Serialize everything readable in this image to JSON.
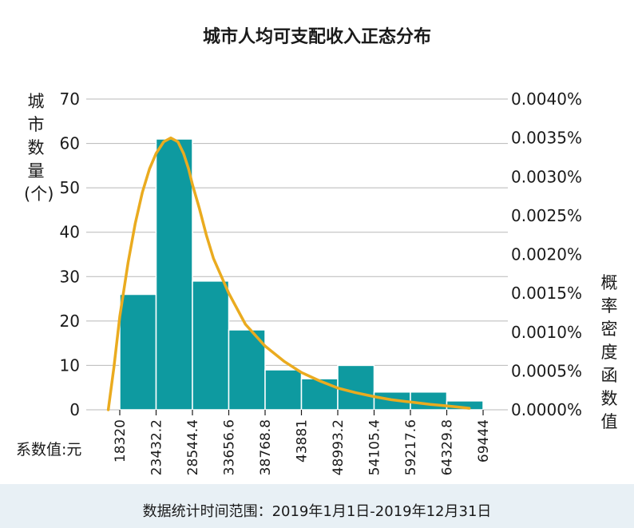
{
  "chart_data": {
    "type": "bar",
    "title": "城市人均可支配收入正态分布",
    "ylabel": "城市数量(个)",
    "ylabel_right": "概率密度函数值",
    "xlabel": "系数值:元",
    "categories": [
      "18320",
      "23432.2",
      "28544.4",
      "33656.6",
      "38768.8",
      "43881",
      "48993.2",
      "54105.4",
      "59217.6",
      "64329.8",
      "69444"
    ],
    "bar_values": [
      26,
      61,
      29,
      18,
      9,
      7,
      10,
      4,
      4,
      2
    ],
    "ylim": [
      0,
      70
    ],
    "yticks": [
      "0",
      "10",
      "20",
      "30",
      "40",
      "50",
      "60",
      "70"
    ],
    "ylim_right": [
      0,
      0.004
    ],
    "yticks_right": [
      "0.0000%",
      "0.0005%",
      "0.0010%",
      "0.0015%",
      "0.0020%",
      "0.0025%",
      "0.0030%",
      "0.0035%",
      "0.0040%"
    ],
    "grid": true,
    "curve": {
      "x": [
        16700,
        17500,
        18320,
        19500,
        20500,
        21500,
        22500,
        23432.2,
        24500,
        25500,
        26500,
        27300,
        28000,
        28544.4,
        29500,
        30500,
        31500,
        33656.6,
        36000,
        38768.8,
        41500,
        43881,
        46500,
        48993.2,
        51500,
        54105.4,
        56500,
        59217.6,
        62000,
        64329.8,
        66500,
        67500
      ],
      "y": [
        0,
        0.00055,
        0.0012,
        0.0019,
        0.0024,
        0.0028,
        0.0031,
        0.0033,
        0.00345,
        0.0035,
        0.00345,
        0.0033,
        0.0031,
        0.0029,
        0.0026,
        0.00225,
        0.00195,
        0.0015,
        0.0011,
        0.00082,
        0.00062,
        0.00048,
        0.00037,
        0.00028,
        0.00022,
        0.00017,
        0.00013,
        0.0001,
        7e-05,
        5e-05,
        3e-05,
        2e-05
      ]
    },
    "bar_color": "#0e9aa0",
    "curve_color": "#eaab1f",
    "footer": "数据统计时间范围：2019年1月1日-2019年12月31日"
  }
}
